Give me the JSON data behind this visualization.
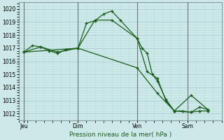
{
  "title": "Pression niveau de la mer( hPa )",
  "bg_color": "#cce8e8",
  "plot_bg_color": "#cce8e8",
  "grid_major_color": "#aacccc",
  "grid_minor_color": "#bbdddd",
  "line_color": "#1a5c1a",
  "vline_color": "#667777",
  "ylim": [
    1011.5,
    1020.5
  ],
  "yticks": [
    1012,
    1013,
    1014,
    1015,
    1016,
    1017,
    1018,
    1019,
    1020
  ],
  "xlim": [
    0,
    12
  ],
  "day_positions": [
    0.3,
    3.5,
    7.0,
    10.0
  ],
  "day_labels": [
    "Jeu",
    "Dim",
    "Ven",
    "Sam"
  ],
  "series1_x": [
    0.3,
    0.8,
    1.3,
    1.8,
    2.3,
    2.8,
    3.5,
    4.0,
    4.5,
    5.0,
    5.5,
    6.0,
    7.0,
    7.3,
    7.6,
    7.9,
    8.2,
    8.7,
    9.2,
    9.7,
    10.2,
    10.7,
    11.2
  ],
  "series1_y": [
    1016.7,
    1017.2,
    1017.1,
    1016.8,
    1016.6,
    1016.9,
    1017.0,
    1018.9,
    1019.1,
    1019.6,
    1019.85,
    1019.15,
    1017.75,
    1017.0,
    1016.6,
    1015.0,
    1014.5,
    1013.1,
    1012.2,
    1012.2,
    1012.1,
    1012.2,
    1012.2
  ],
  "series2_x": [
    0.3,
    1.3,
    2.3,
    3.5,
    4.5,
    5.5,
    7.0,
    7.6,
    8.2,
    8.7,
    9.2,
    10.2,
    10.7,
    11.2
  ],
  "series2_y": [
    1016.7,
    1017.1,
    1016.7,
    1017.0,
    1019.15,
    1019.15,
    1017.75,
    1015.2,
    1014.7,
    1013.0,
    1012.2,
    1012.1,
    1012.5,
    1012.3
  ],
  "series3_x": [
    0.3,
    3.5,
    7.0,
    8.2,
    9.2,
    10.2,
    11.2
  ],
  "series3_y": [
    1016.7,
    1017.0,
    1015.5,
    1013.55,
    1012.2,
    1013.4,
    1012.3
  ],
  "marker": "+",
  "marker_size": 3.5,
  "linewidth": 0.9
}
